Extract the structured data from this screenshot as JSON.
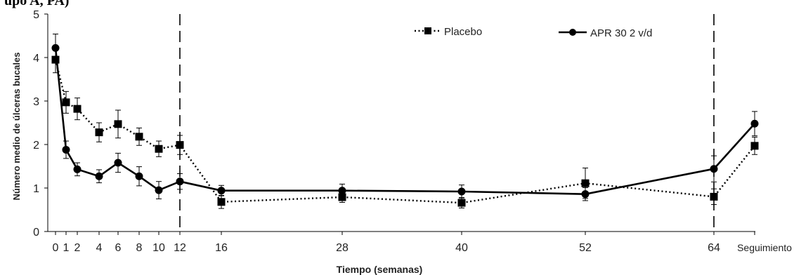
{
  "caption_fragment": "upo A, PA)",
  "chart_data": {
    "type": "line",
    "xlabel": "Tiempo (semanas)",
    "ylabel": "Número medio de úlceras bucales",
    "ylim": [
      0,
      5
    ],
    "yticks": [
      0,
      1,
      2,
      3,
      4,
      5
    ],
    "categories": [
      "0",
      "1",
      "2",
      "4",
      "6",
      "8",
      "10",
      "12",
      "16",
      "28",
      "40",
      "52",
      "64",
      "Seguimiento"
    ],
    "weeks": [
      0,
      1,
      2,
      4,
      6,
      8,
      10,
      12,
      16,
      28,
      40,
      52,
      64,
      68
    ],
    "reference_lines_at": [
      12,
      64
    ],
    "legend_position": "top-right",
    "series": [
      {
        "name": "Placebo",
        "style": "dotted",
        "marker": "square",
        "color": "#000000",
        "x": [
          0,
          1,
          2,
          4,
          6,
          8,
          10,
          12,
          16,
          28,
          40,
          52,
          64,
          68
        ],
        "y": [
          3.95,
          2.97,
          2.82,
          2.28,
          2.47,
          2.18,
          1.9,
          1.99,
          0.68,
          0.79,
          0.66,
          1.11,
          0.8,
          1.97
        ],
        "err": [
          0.3,
          0.25,
          0.25,
          0.22,
          0.32,
          0.2,
          0.18,
          0.22,
          0.15,
          0.12,
          0.12,
          0.35,
          0.18,
          0.2
        ]
      },
      {
        "name": "APR 30 2 v/d",
        "style": "solid",
        "marker": "circle",
        "color": "#000000",
        "x": [
          0,
          1,
          2,
          4,
          6,
          8,
          10,
          12,
          16,
          28,
          40,
          52,
          64,
          68
        ],
        "y": [
          4.22,
          1.88,
          1.43,
          1.27,
          1.58,
          1.27,
          0.95,
          1.15,
          0.94,
          0.94,
          0.92,
          0.86,
          1.44,
          2.48
        ],
        "err": [
          0.32,
          0.2,
          0.15,
          0.15,
          0.22,
          0.22,
          0.2,
          0.18,
          0.12,
          0.15,
          0.15,
          0.15,
          0.3,
          0.28
        ]
      }
    ]
  }
}
